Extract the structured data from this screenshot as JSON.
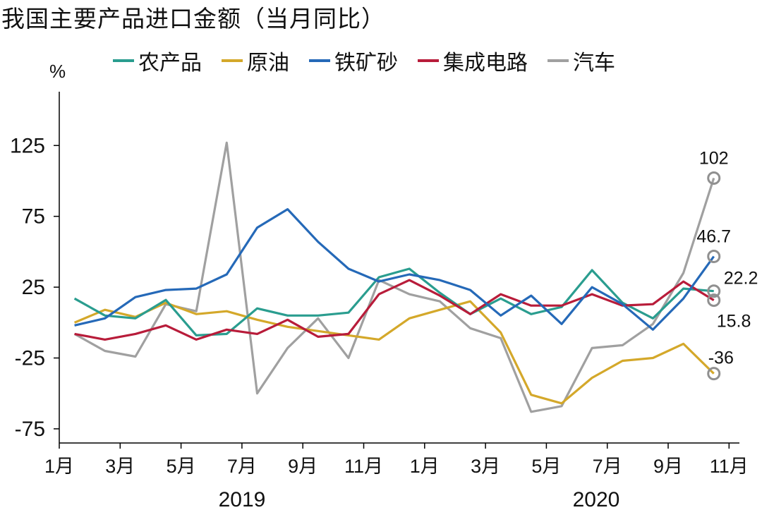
{
  "title": "我国主要产品进口金额（当月同比）",
  "unit_label": "%",
  "colors": {
    "农产品": "#2a9d8f",
    "原油": "#d4a82a",
    "铁矿砂": "#2569b8",
    "集成电路": "#b81c3a",
    "汽车": "#a0a0a0",
    "axis": "#000000",
    "marker": "#909090"
  },
  "chart_data": {
    "type": "line",
    "title": "我国主要产品进口金额（当月同比）",
    "ylabel": "%",
    "ylim": [
      -85,
      158
    ],
    "yticks": [
      -75,
      -25,
      25,
      75,
      125
    ],
    "x_tick_labels": [
      "1月",
      "3月",
      "5月",
      "7月",
      "9月",
      "11月",
      "1月",
      "3月",
      "5月",
      "7月",
      "9月",
      "11月"
    ],
    "year_labels": [
      "2019",
      "2020"
    ],
    "x": [
      "2019-02",
      "2019-03",
      "2019-04",
      "2019-05",
      "2019-06",
      "2019-07",
      "2019-08",
      "2019-09",
      "2019-10",
      "2019-11",
      "2019-12",
      "2020-01",
      "2020-02",
      "2020-03",
      "2020-04",
      "2020-05",
      "2020-06",
      "2020-07",
      "2020-08",
      "2020-09",
      "2020-10",
      "2020-11"
    ],
    "legend_position": "top",
    "grid": false,
    "series": [
      {
        "name": "农产品",
        "values": [
          17,
          5,
          3,
          16,
          -9,
          -8,
          10,
          5,
          5,
          7,
          32,
          38,
          21,
          6,
          17,
          6,
          11,
          37,
          14,
          3,
          24,
          22.2
        ]
      },
      {
        "name": "原油",
        "values": [
          0,
          9,
          4,
          14,
          6,
          8,
          2,
          -3,
          -6,
          -9,
          -12,
          3,
          9,
          15,
          -7,
          -51,
          -57,
          -39,
          -27,
          -25,
          -15,
          -36
        ]
      },
      {
        "name": "铁矿砂",
        "values": [
          -2,
          3,
          18,
          23,
          24,
          34,
          67,
          80,
          57,
          38,
          29,
          34,
          30,
          23,
          5,
          19,
          -1,
          25,
          13,
          -5,
          17,
          46.7
        ]
      },
      {
        "name": "集成电路",
        "values": [
          -8,
          -12,
          -8,
          -2,
          -12,
          -5,
          -8,
          2,
          -10,
          -8,
          20,
          30,
          19,
          6,
          20,
          12,
          12,
          20,
          12,
          13,
          29,
          15.8
        ]
      },
      {
        "name": "汽车",
        "values": [
          -8,
          -20,
          -24,
          13,
          8,
          127,
          -50,
          -18,
          3,
          -25,
          30,
          20,
          15,
          -4,
          -11,
          -63,
          -59,
          -18,
          -16,
          -1,
          35,
          102
        ]
      }
    ],
    "annotations": [
      {
        "series": "汽车",
        "label": "102"
      },
      {
        "series": "铁矿砂",
        "label": "46.7"
      },
      {
        "series": "农产品",
        "label": "22.2"
      },
      {
        "series": "集成电路",
        "label": "15.8"
      },
      {
        "series": "原油",
        "label": "-36"
      }
    ]
  }
}
